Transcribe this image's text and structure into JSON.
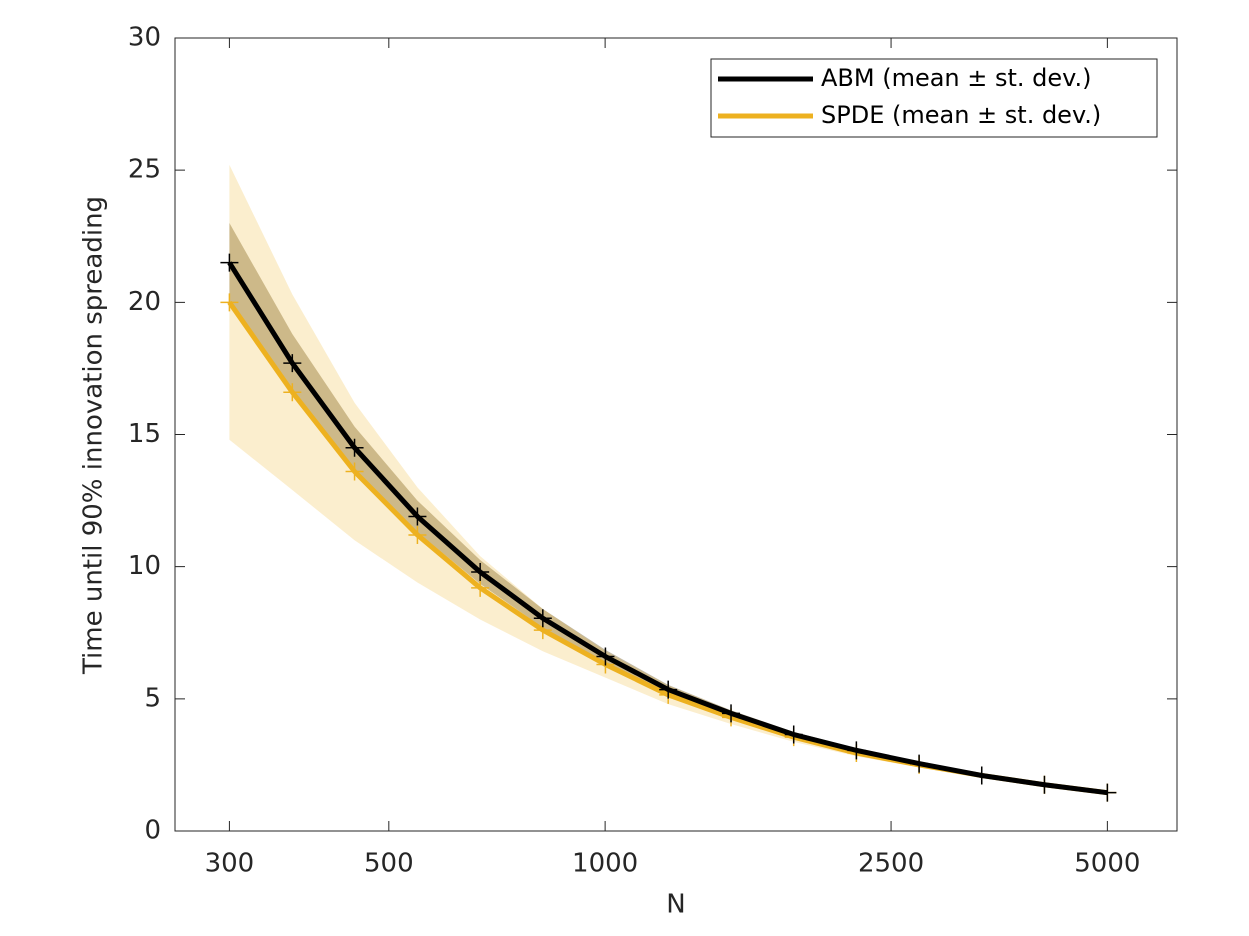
{
  "chart_data": {
    "type": "line",
    "x_label": "N",
    "y_label": "Time until 90% innovation spreading",
    "x": [
      300,
      367,
      448,
      548,
      670,
      819,
      1001,
      1224,
      1497,
      1830,
      2237,
      2735,
      3343,
      4087,
      5000
    ],
    "xlim": [
      252,
      6250
    ],
    "xticks": [
      300,
      500,
      1000,
      2500,
      5000
    ],
    "xscale": "log",
    "ylim": [
      0,
      30
    ],
    "yticks": [
      0,
      5,
      10,
      15,
      20,
      25,
      30
    ],
    "legend": "upper right",
    "series": [
      {
        "name": "ABM (mean ± st. dev.)",
        "color": "#000000",
        "band_color": "#7f6a3c",
        "values": [
          21.5,
          17.7,
          14.5,
          11.9,
          9.8,
          8.05,
          6.6,
          5.35,
          4.45,
          3.65,
          3.05,
          2.55,
          2.1,
          1.75,
          1.45
        ],
        "std": [
          1.5,
          1.1,
          0.8,
          0.6,
          0.45,
          0.35,
          0.25,
          0.18,
          0.12,
          0.1,
          0.08,
          0.06,
          0.05,
          0.04,
          0.03
        ]
      },
      {
        "name": "SPDE (mean ± st. dev.)",
        "color": "#edb120",
        "band_color": "#edb120",
        "values": [
          20.0,
          16.6,
          13.6,
          11.2,
          9.2,
          7.6,
          6.3,
          5.15,
          4.3,
          3.55,
          2.95,
          2.5,
          2.1,
          1.75,
          1.45
        ],
        "std": [
          5.2,
          3.7,
          2.6,
          1.8,
          1.2,
          0.8,
          0.5,
          0.35,
          0.25,
          0.18,
          0.12,
          0.1,
          0.08,
          0.06,
          0.05
        ]
      }
    ]
  }
}
